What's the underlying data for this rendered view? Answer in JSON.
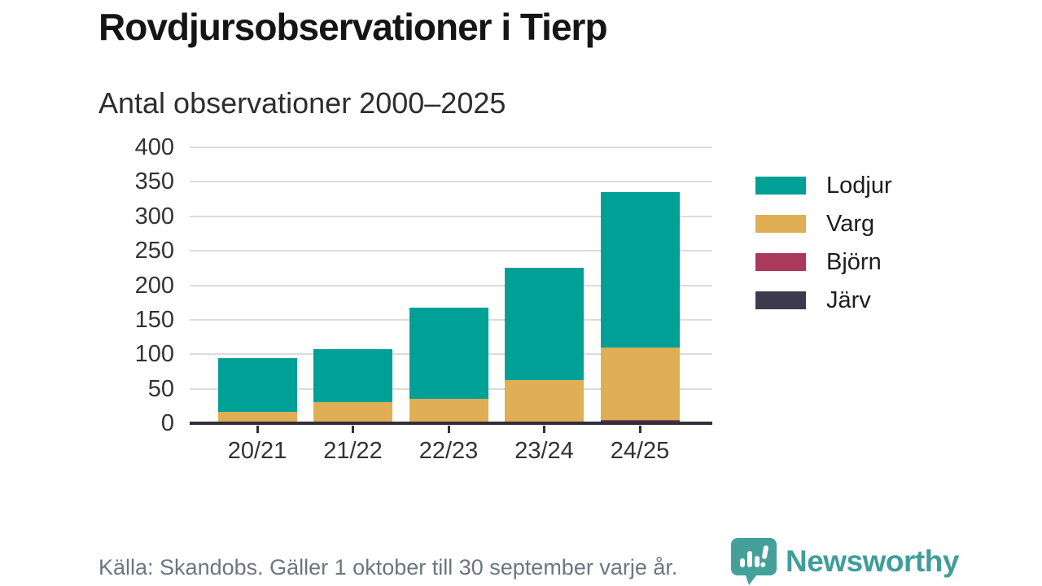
{
  "header": {
    "title": "Rovdjursobservationer i Tierp",
    "subtitle": "Antal observationer 2000–2025"
  },
  "chart_data": {
    "type": "bar",
    "stacked": true,
    "title": "Rovdjursobservationer i Tierp",
    "subtitle": "Antal observationer 2000–2025",
    "categories": [
      "20/21",
      "21/22",
      "22/23",
      "23/24",
      "24/25"
    ],
    "series": [
      {
        "name": "Lodjur",
        "color": "#00a096",
        "values": [
          79,
          77,
          133,
          163,
          225
        ]
      },
      {
        "name": "Varg",
        "color": "#dfae55",
        "values": [
          16,
          29,
          33,
          60,
          105
        ]
      },
      {
        "name": "Björn",
        "color": "#a93a5c",
        "values": [
          0,
          2,
          2,
          2,
          2
        ]
      },
      {
        "name": "Järv",
        "color": "#3d3a4d",
        "values": [
          0,
          0,
          0,
          0,
          3
        ]
      }
    ],
    "totals": [
      95,
      108,
      168,
      225,
      335
    ],
    "y_ticks": [
      0,
      50,
      100,
      150,
      200,
      250,
      300,
      350,
      400
    ],
    "ylim": [
      0,
      400
    ],
    "xlabel": "",
    "ylabel": "",
    "grid": "horizontal",
    "legend_position": "right"
  },
  "footer": {
    "source": "Källa: Skandobs. Gäller 1 oktober till 30 september varje år.",
    "brand": "Newsworthy"
  },
  "colors": {
    "brand_teal": "#3f9e99",
    "axis": "#322f3b",
    "gridline": "#dcdcdc",
    "tick_text": "#333333",
    "source_text": "#6e7480"
  }
}
